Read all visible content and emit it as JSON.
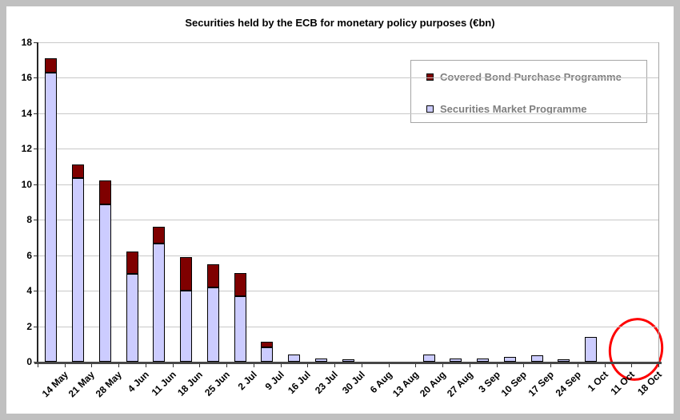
{
  "chart_data": {
    "type": "bar",
    "stacked": true,
    "title": "Securities held by the ECB for monetary policy purposes (€bn)",
    "categories": [
      "14 May",
      "21 May",
      "28 May",
      "4 Jun",
      "11 Jun",
      "18 Jun",
      "25 Jun",
      "2 Jul",
      "9 Jul",
      "16 Jul",
      "23 Jul",
      "30 Jul",
      "6 Aug",
      "13 Aug",
      "20 Aug",
      "27 Aug",
      "3 Sep",
      "10 Sep",
      "17 Sep",
      "24 Sep",
      "1 Oct",
      "11 Oct",
      "18 Oct"
    ],
    "series": [
      {
        "name": "Securities Market Programme",
        "color": "#ccccff",
        "values": [
          16.3,
          10.35,
          8.85,
          4.95,
          6.65,
          4.0,
          4.2,
          3.7,
          0.8,
          0.4,
          0.2,
          0.1,
          0,
          0,
          0.4,
          0.2,
          0.2,
          0.25,
          0.35,
          0.15,
          1.4,
          0,
          0
        ]
      },
      {
        "name": "Covered Bond Purchase Programme",
        "color": "#7f0000",
        "values": [
          0.8,
          0.75,
          1.35,
          1.25,
          0.95,
          1.9,
          1.3,
          1.3,
          0.3,
          0,
          0,
          0,
          0,
          0,
          0,
          0,
          0,
          0,
          0,
          0,
          0,
          0,
          0
        ]
      }
    ],
    "ylim": [
      0,
      18
    ],
    "ytick_step": 2,
    "grid": true,
    "legend_position": "top-right",
    "annotation": {
      "shape": "ellipse",
      "color": "#ff0000",
      "highlights": [
        "11 Oct",
        "18 Oct"
      ]
    }
  },
  "legend_items": [
    {
      "label": "Covered Bond Purchase Programme",
      "color": "#7f0000"
    },
    {
      "label": "Securities Market Programme",
      "color": "#ccccff"
    }
  ],
  "colors": {
    "frame": "#c0c0c0",
    "plot_background": "#ffffff",
    "gridline": "#c8c8c8",
    "axis": "#474747",
    "legend_text": "#7f7f7f",
    "annotation": "#fe0000"
  }
}
